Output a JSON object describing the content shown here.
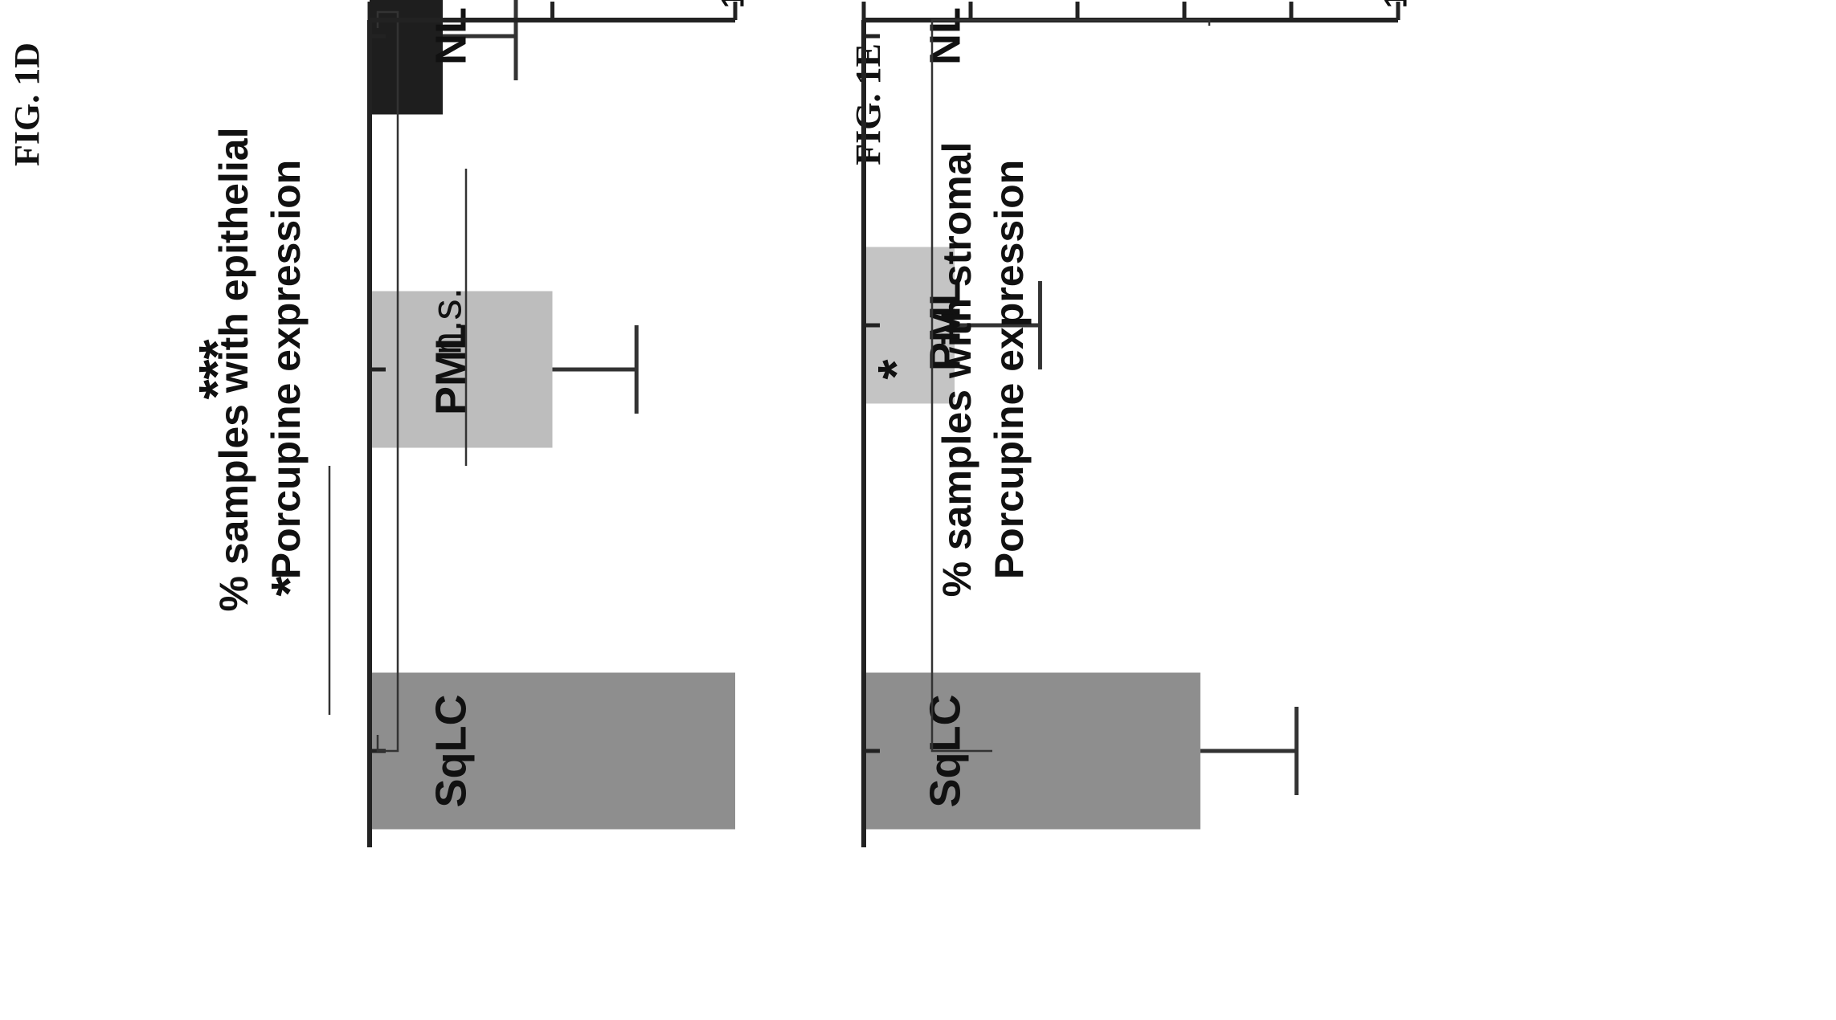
{
  "chart_data": [
    {
      "type": "bar",
      "figure_label": "FIG. 1D",
      "ylabel_lines": [
        "% samples with epithelial",
        "Porcupine expression"
      ],
      "categories": [
        "NL",
        "PML",
        "SqLC"
      ],
      "values": [
        20,
        50,
        100
      ],
      "errors": [
        20,
        23,
        0
      ],
      "bar_colors": [
        "#1e1e1e",
        "#bdbdbd",
        "#8e8e8e"
      ],
      "ylim": [
        0,
        100
      ],
      "yticks": [
        "0",
        "50",
        "100"
      ],
      "annotations": [
        {
          "text": "n.s.",
          "between": [
            "NL",
            "PML"
          ]
        },
        {
          "text": "*",
          "between": [
            "PML",
            "SqLC"
          ]
        },
        {
          "text": "***",
          "between": [
            "NL",
            "SqLC"
          ]
        }
      ]
    },
    {
      "type": "bar",
      "figure_label": "FIG. 1E",
      "ylabel_lines": [
        "% samples with stromal",
        "Porcupine expression"
      ],
      "categories": [
        "NL",
        "PML",
        "SqLC"
      ],
      "values": [
        0,
        17,
        63
      ],
      "errors": [
        0,
        16,
        18
      ],
      "bar_colors": [
        "#1e1e1e",
        "#c4c4c4",
        "#8e8e8e"
      ],
      "ylim": [
        0,
        100
      ],
      "yticks": [
        "0",
        "20",
        "40",
        "60",
        "80",
        "100"
      ],
      "annotations": [
        {
          "text": "*",
          "between": [
            "NL",
            "SqLC"
          ]
        }
      ]
    }
  ]
}
